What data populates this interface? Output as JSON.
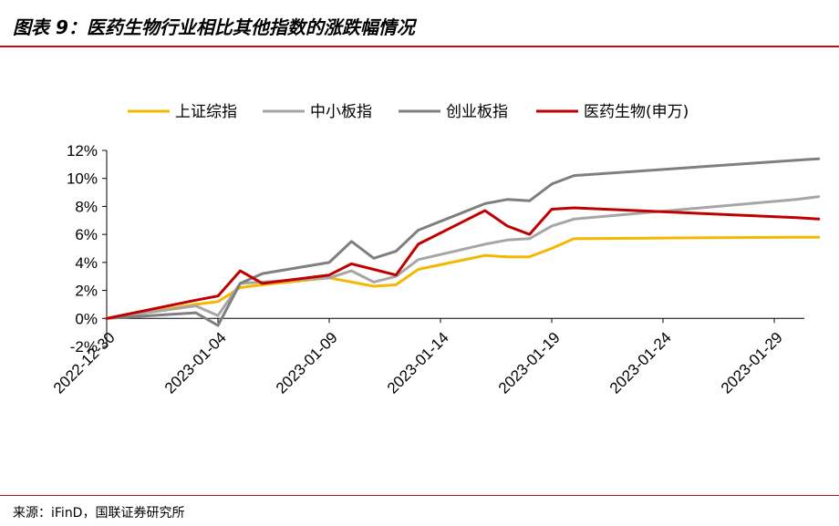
{
  "title": "图表 9：医药生物行业相比其他指数的涨跌幅情况",
  "source": "来源：iFinD，国联证券研究所",
  "chart_data": {
    "type": "line",
    "x": [
      "2022-12-30",
      "2023-01-03",
      "2023-01-04",
      "2023-01-05",
      "2023-01-06",
      "2023-01-09",
      "2023-01-10",
      "2023-01-11",
      "2023-01-12",
      "2023-01-13",
      "2023-01-16",
      "2023-01-17",
      "2023-01-18",
      "2023-01-19",
      "2023-01-20",
      "2023-01-30",
      "2023-01-31"
    ],
    "x_tick_labels": [
      "2022-12-30",
      "2023-01-04",
      "2023-01-09",
      "2023-01-14",
      "2023-01-19",
      "2023-01-24",
      "2023-01-29"
    ],
    "y_tick_labels": [
      "-2%",
      "0%",
      "2%",
      "4%",
      "6%",
      "8%",
      "10%",
      "12%"
    ],
    "ylim": [
      -2,
      12
    ],
    "y_unit": "%",
    "series": [
      {
        "name": "上证综指",
        "color": "#f5b800",
        "values": [
          0,
          1.0,
          1.2,
          2.2,
          2.4,
          2.9,
          2.6,
          2.3,
          2.4,
          3.5,
          4.5,
          4.4,
          4.4,
          5.0,
          5.7,
          5.8,
          5.8
        ]
      },
      {
        "name": "中小板指",
        "color": "#a6a6a6",
        "values": [
          0,
          0.9,
          0.2,
          2.5,
          2.6,
          2.9,
          3.4,
          2.6,
          3.0,
          4.2,
          5.3,
          5.6,
          5.7,
          6.6,
          7.1,
          8.5,
          8.7
        ]
      },
      {
        "name": "创业板指",
        "color": "#7f7f7f",
        "values": [
          0,
          0.4,
          -0.5,
          2.5,
          3.2,
          4.0,
          5.5,
          4.3,
          4.8,
          6.3,
          8.2,
          8.5,
          8.4,
          9.6,
          10.2,
          11.3,
          11.4
        ]
      },
      {
        "name": "医药生物(申万)",
        "color": "#c00000",
        "values": [
          0,
          1.3,
          1.6,
          3.4,
          2.5,
          3.1,
          3.9,
          3.5,
          3.1,
          5.3,
          7.7,
          6.6,
          6.0,
          7.8,
          7.9,
          7.2,
          7.1
        ]
      }
    ],
    "legend_position": "top",
    "grid": false
  }
}
